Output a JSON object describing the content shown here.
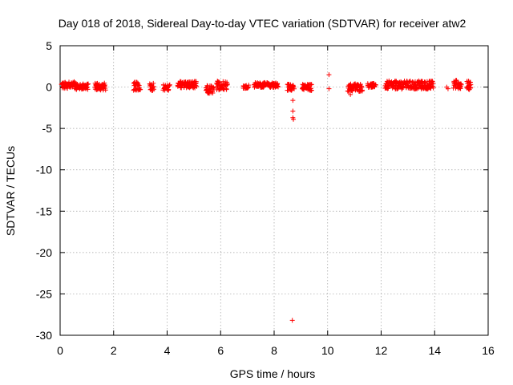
{
  "chart_data": {
    "type": "scatter",
    "title": "Day 018 of 2018, Sidereal Day-to-day VTEC variation (SDTVAR) for receiver atw2",
    "xlabel": "GPS time / hours",
    "ylabel": "SDTVAR / TECUs",
    "xlim": [
      0,
      16
    ],
    "ylim": [
      -30,
      5
    ],
    "xticks": [
      0,
      2,
      4,
      6,
      8,
      10,
      12,
      14,
      16
    ],
    "yticks": [
      5,
      0,
      -5,
      -10,
      -15,
      -20,
      -25,
      -30
    ],
    "xtick_labels": [
      "0",
      "2",
      "4",
      "6",
      "8",
      "10",
      "12",
      "14",
      "16"
    ],
    "ytick_labels": [
      "5",
      "0",
      "-5",
      "-10",
      "-15",
      "-20",
      "-25",
      "-30"
    ],
    "grid": true,
    "marker": "+",
    "color": "#ff0000",
    "clusters": [
      {
        "x0": 0.05,
        "x1": 0.6,
        "yc": 0.2,
        "spread": 0.45
      },
      {
        "x0": 0.6,
        "x1": 1.05,
        "yc": 0.05,
        "spread": 0.35
      },
      {
        "x0": 1.3,
        "x1": 1.7,
        "yc": 0.05,
        "spread": 0.45
      },
      {
        "x0": 2.75,
        "x1": 3.0,
        "yc": 0.1,
        "spread": 0.5
      },
      {
        "x0": 3.35,
        "x1": 3.5,
        "yc": 0.05,
        "spread": 0.5
      },
      {
        "x0": 3.85,
        "x1": 4.1,
        "yc": -0.05,
        "spread": 0.35
      },
      {
        "x0": 4.4,
        "x1": 5.1,
        "yc": 0.3,
        "spread": 0.4
      },
      {
        "x0": 5.45,
        "x1": 5.75,
        "yc": -0.3,
        "spread": 0.5
      },
      {
        "x0": 5.85,
        "x1": 6.25,
        "yc": 0.2,
        "spread": 0.55
      },
      {
        "x0": 6.85,
        "x1": 7.05,
        "yc": 0.05,
        "spread": 0.2
      },
      {
        "x0": 7.25,
        "x1": 8.15,
        "yc": 0.25,
        "spread": 0.3
      },
      {
        "x0": 8.5,
        "x1": 8.75,
        "yc": 0.0,
        "spread": 0.4
      },
      {
        "x0": 9.05,
        "x1": 9.4,
        "yc": -0.05,
        "spread": 0.4
      },
      {
        "x0": 10.75,
        "x1": 11.3,
        "yc": -0.05,
        "spread": 0.5
      },
      {
        "x0": 11.5,
        "x1": 11.8,
        "yc": 0.2,
        "spread": 0.25
      },
      {
        "x0": 12.15,
        "x1": 13.95,
        "yc": 0.25,
        "spread": 0.5
      },
      {
        "x0": 14.7,
        "x1": 15.0,
        "yc": 0.3,
        "spread": 0.55
      },
      {
        "x0": 15.2,
        "x1": 15.35,
        "yc": 0.2,
        "spread": 0.55
      }
    ],
    "points": [
      {
        "x": 8.7,
        "y": -1.6
      },
      {
        "x": 8.7,
        "y": -2.9
      },
      {
        "x": 8.7,
        "y": -3.7
      },
      {
        "x": 8.72,
        "y": -3.9
      },
      {
        "x": 8.68,
        "y": -28.2
      },
      {
        "x": 10.05,
        "y": 1.5
      },
      {
        "x": 10.05,
        "y": -0.2
      },
      {
        "x": 10.85,
        "y": -0.9
      },
      {
        "x": 14.45,
        "y": 0.0
      },
      {
        "x": 14.5,
        "y": -0.2
      },
      {
        "x": 11.65,
        "y": 0.0
      },
      {
        "x": 15.3,
        "y": -0.3
      }
    ]
  }
}
